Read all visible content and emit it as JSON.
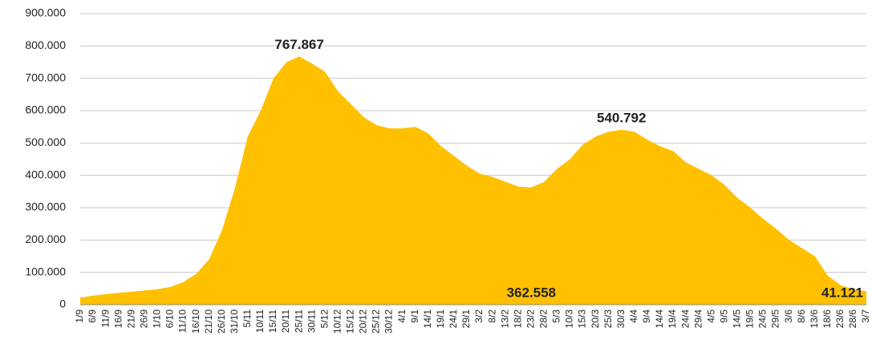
{
  "chart_data": {
    "type": "area",
    "categories": [
      "1/9",
      "6/9",
      "11/9",
      "16/9",
      "21/9",
      "26/9",
      "1/10",
      "6/10",
      "11/10",
      "16/10",
      "21/10",
      "26/10",
      "31/10",
      "5/11",
      "10/11",
      "15/11",
      "20/11",
      "25/11",
      "30/11",
      "5/12",
      "10/12",
      "15/12",
      "20/12",
      "25/12",
      "30/12",
      "4/1",
      "9/1",
      "14/1",
      "19/1",
      "24/1",
      "29/1",
      "3/2",
      "8/2",
      "13/2",
      "18/2",
      "23/2",
      "28/2",
      "5/3",
      "10/3",
      "15/3",
      "20/3",
      "25/3",
      "30/3",
      "4/4",
      "9/4",
      "14/4",
      "19/4",
      "24/4",
      "29/4",
      "4/5",
      "9/5",
      "14/5",
      "19/5",
      "24/5",
      "29/5",
      "3/6",
      "8/6",
      "13/6",
      "18/6",
      "23/6",
      "28/6",
      "3/7"
    ],
    "values": [
      22000,
      28000,
      33000,
      37000,
      40000,
      44000,
      48000,
      55000,
      70000,
      95000,
      140000,
      230000,
      360000,
      520000,
      600000,
      700000,
      750000,
      767867,
      745000,
      720000,
      660000,
      620000,
      580000,
      555000,
      545000,
      545000,
      550000,
      530000,
      490000,
      460000,
      430000,
      405000,
      395000,
      380000,
      365000,
      362558,
      380000,
      420000,
      450000,
      495000,
      520000,
      535000,
      540792,
      535000,
      510000,
      490000,
      475000,
      440000,
      420000,
      400000,
      370000,
      330000,
      300000,
      265000,
      235000,
      200000,
      175000,
      150000,
      90000,
      60000,
      48000,
      41121
    ],
    "value_labels": [
      null,
      null,
      null,
      null,
      null,
      null,
      null,
      null,
      null,
      null,
      null,
      null,
      null,
      null,
      null,
      null,
      null,
      "767.867",
      null,
      null,
      null,
      null,
      null,
      null,
      null,
      null,
      null,
      null,
      null,
      null,
      null,
      null,
      null,
      null,
      null,
      "362.558",
      null,
      null,
      null,
      null,
      null,
      null,
      "540.792",
      null,
      null,
      null,
      null,
      null,
      null,
      null,
      null,
      null,
      null,
      null,
      null,
      null,
      null,
      null,
      null,
      null,
      null,
      "41.121"
    ],
    "color": "#ffc000",
    "label_color": "#f0b400",
    "ylim": [
      0,
      900000
    ],
    "yticks": [
      0,
      {
        "value": 100000,
        "label": "100.000"
      },
      {
        "value": 200000,
        "label": "200.000"
      },
      {
        "value": 300000,
        "label": "300.000"
      },
      {
        "value": 400000,
        "label": "400.000"
      },
      {
        "value": 500000,
        "label": "500.000"
      },
      {
        "value": 600000,
        "label": "600.000"
      },
      {
        "value": 700000,
        "label": "700.000"
      },
      {
        "value": 800000,
        "label": "800.000"
      },
      {
        "value": 900000,
        "label": "900.000"
      }
    ],
    "grid": true
  }
}
